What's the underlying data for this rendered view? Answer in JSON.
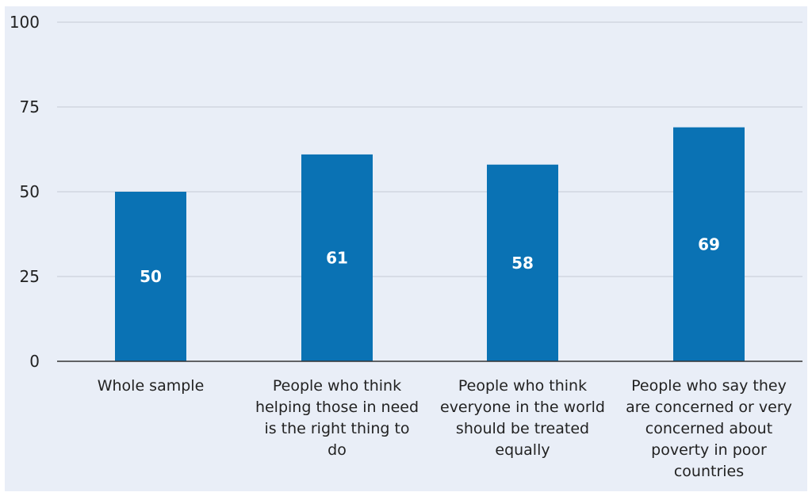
{
  "chart_data": {
    "type": "bar",
    "categories": [
      "Whole sample",
      "People who think helping those in need is the right thing to do",
      "People who think everyone in the world should be treated equally",
      "People who say they are concerned or very concerned about poverty in poor countries"
    ],
    "category_lines": [
      [
        "Whole sample"
      ],
      [
        "People who think",
        "helping those in need",
        "is the right thing to",
        "do"
      ],
      [
        "People who think",
        "everyone in the world",
        "should be treated",
        "equally"
      ],
      [
        "People who say they",
        "are concerned or very",
        "concerned about",
        "poverty in poor",
        "countries"
      ]
    ],
    "values": [
      50,
      61,
      58,
      69
    ],
    "data_labels": [
      "50",
      "61",
      "58",
      "69"
    ],
    "yticks": [
      0,
      25,
      50,
      75,
      100
    ],
    "ylim": [
      0,
      100
    ],
    "grid": true,
    "colors": {
      "bar": "#0a72b4",
      "grid": "#c5cad4",
      "axis": "#333333",
      "background": "#e9eef7"
    }
  }
}
